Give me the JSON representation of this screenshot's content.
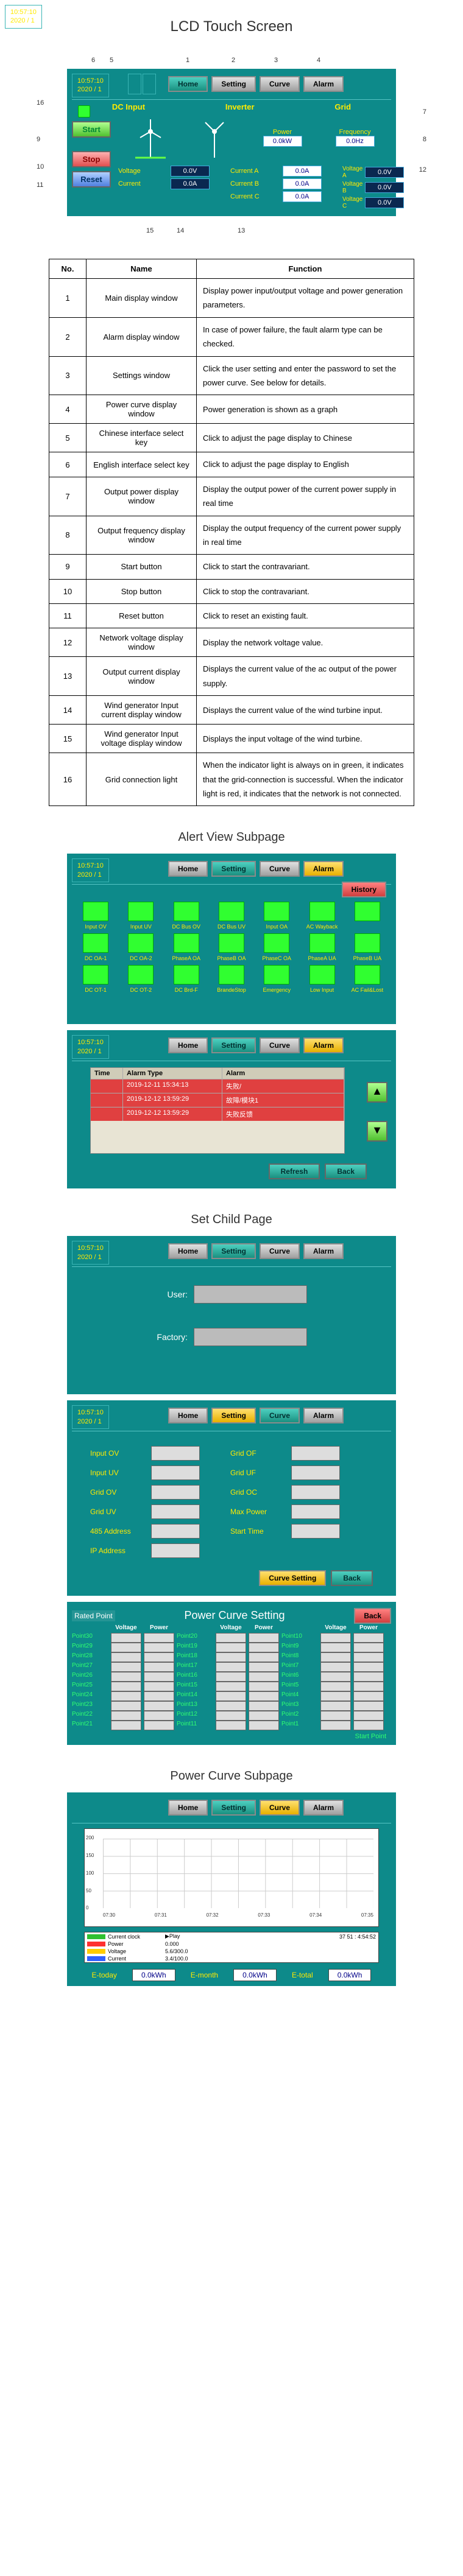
{
  "title": "LCD Touch Screen",
  "clock": {
    "time": "10:57:10",
    "date": "2020 / 1",
    "sep": "5"
  },
  "nav": {
    "home": "Home",
    "setting": "Setting",
    "curve": "Curve",
    "alarm": "Alarm"
  },
  "main": {
    "sections": {
      "dc": "DC Input",
      "inverter": "Inverter",
      "grid": "Grid"
    },
    "buttons": {
      "start": "Start",
      "stop": "Stop",
      "reset": "Reset"
    },
    "readouts": {
      "power_lbl": "Power",
      "power_val": "0.0kW",
      "freq_lbl": "Frequency",
      "freq_val": "0.0Hz",
      "currA_lbl": "Current A",
      "currA_val": "0.0A",
      "currB_lbl": "Current B",
      "currB_val": "0.0A",
      "currC_lbl": "Current C",
      "currC_val": "0.0A",
      "voltA_lbl": "Voltage A",
      "voltA_val": "0.0V",
      "voltB_lbl": "Voltage B",
      "voltB_val": "0.0V",
      "voltC_lbl": "Voltage C",
      "voltC_val": "0.0V",
      "in_volt_lbl": "Voltage",
      "in_volt_val": "0.0V",
      "in_curr_lbl": "Current",
      "in_curr_val": "0.0A"
    }
  },
  "func_table": {
    "headers": [
      "No.",
      "Name",
      "Function"
    ],
    "rows": [
      [
        "1",
        "Main display window",
        "Display power input/output voltage and power generation parameters."
      ],
      [
        "2",
        "Alarm display window",
        "In case of power failure, the fault alarm type can be checked."
      ],
      [
        "3",
        "Settings window",
        "Click the user setting and enter the password to set the power curve. See below for details."
      ],
      [
        "4",
        "Power curve display window",
        "Power generation is shown as a graph"
      ],
      [
        "5",
        "Chinese interface select key",
        "Click to adjust the page display to Chinese"
      ],
      [
        "6",
        "English interface select key",
        "Click to adjust the page display to English"
      ],
      [
        "7",
        "Output power display window",
        "Display the output power of the current power supply in real time"
      ],
      [
        "8",
        "Output frequency display window",
        "Display the output frequency of the current power supply in real time"
      ],
      [
        "9",
        "Start button",
        "Click to start the contravariant."
      ],
      [
        "10",
        "Stop button",
        "Click to stop the contravariant."
      ],
      [
        "11",
        "Reset button",
        "Click to reset an existing fault."
      ],
      [
        "12",
        "Network voltage display window",
        "Display the network voltage value."
      ],
      [
        "13",
        "Output current display window",
        "Displays the current value of the ac output of the power supply."
      ],
      [
        "14",
        "Wind generator Input current display window",
        "Displays the current value of the wind turbine input."
      ],
      [
        "15",
        "Wind generator Input voltage display window",
        "Displays the input voltage of the wind turbine."
      ],
      [
        "16",
        "Grid connection light",
        "When the indicator light is always on in green, it indicates that the grid-connection is successful. When the indicator light is red, it indicates that the network is not connected."
      ]
    ]
  },
  "alert": {
    "title": "Alert View Subpage",
    "history": "History",
    "lights": [
      "Input OV",
      "Input UV",
      "DC Bus OV",
      "DC Bus UV",
      "Input OA",
      "AC Wayback",
      "",
      "DC OA-1",
      "DC OA-2",
      "PhaseA OA",
      "PhaseB OA",
      "PhaseC OA",
      "PhaseA UA",
      "PhaseB UA",
      "DC OT-1",
      "DC OT-2",
      "DC Brd-F",
      "BrandeStop",
      "Emergency",
      "Low Input",
      "AC Fail&Lost"
    ],
    "alarm_hdr": [
      "Time",
      "Alarm Type",
      "Alarm"
    ],
    "alarm_rows": [
      [
        "",
        "2019-12-11 15:34:13",
        "失败/<Alarm Clear>"
      ],
      [
        "",
        "2019-12-12 13:59:29",
        "故障/模块1<Alarm Clear>"
      ],
      [
        "",
        "2019-12-12 13:59:29",
        "失败反馈"
      ]
    ],
    "refresh": "Refresh",
    "back": "Back"
  },
  "setchild": {
    "title": "Set Child Page",
    "user": "User:",
    "factory": "Factory:",
    "params_left": [
      "Input OV",
      "Input UV",
      "Grid OV",
      "Grid UV",
      "485 Address",
      "IP Address"
    ],
    "params_right": [
      "Grid OF",
      "Grid UF",
      "Grid OC",
      "Max Power",
      "Start Time"
    ],
    "curve_setting": "Curve Setting",
    "back": "Back"
  },
  "pcs": {
    "title": "Power Curve Setting",
    "rated": "Rated Point",
    "back": "Back",
    "hdrs": [
      "Voltage",
      "Power"
    ],
    "cols": [
      [
        "Point30",
        "Point29",
        "Point28",
        "Point27",
        "Point26",
        "Point25",
        "Point24",
        "Point23",
        "Point22",
        "Point21"
      ],
      [
        "Point20",
        "Point19",
        "Point18",
        "Point17",
        "Point16",
        "Point15",
        "Point14",
        "Point13",
        "Point12",
        "Point11"
      ],
      [
        "Point10",
        "Point9",
        "Point8",
        "Point7",
        "Point6",
        "Point5",
        "Point4",
        "Point3",
        "Point2",
        "Point1"
      ]
    ],
    "start": "Start Point"
  },
  "powercurve": {
    "title": "Power Curve Subpage",
    "yticks": [
      "200",
      "150",
      "100",
      "50",
      "0"
    ],
    "xticks": [
      "07:30",
      "07:31",
      "07:32",
      "07:33",
      "07:34",
      "07:35"
    ],
    "legend": [
      {
        "label": "Current clock",
        "color": "#30c030",
        "play": "▶Play",
        "range": "37 51 : 4:54:52"
      },
      {
        "label": "Power",
        "color": "#ff3030",
        "val": "0.000"
      },
      {
        "label": "Voltage",
        "color": "#ffcc00",
        "val": "5.6/300.0"
      },
      {
        "label": "Current",
        "color": "#3060ff",
        "val": "3.4/100.0"
      }
    ],
    "etoday_lbl": "E-today",
    "etoday": "0.0kWh",
    "emonth_lbl": "E-month",
    "emonth": "0.0kWh",
    "etotal_lbl": "E-total",
    "etotal": "0.0kWh"
  },
  "callouts": {
    "top": [
      "6",
      "5",
      "1",
      "2",
      "3",
      "4"
    ],
    "left": [
      "16",
      "9",
      "10",
      "11"
    ],
    "right": [
      "7",
      "8",
      "12"
    ],
    "bottom": [
      "15",
      "14",
      "13"
    ]
  }
}
